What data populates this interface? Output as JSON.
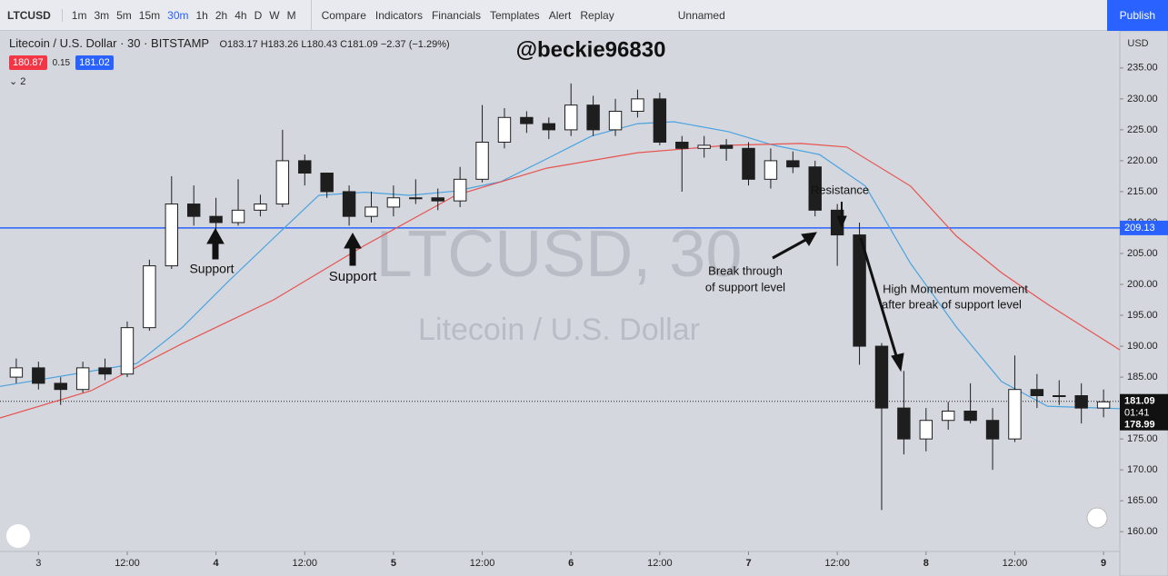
{
  "toolbar": {
    "symbol": "LTCUSD",
    "intervals": [
      "1m",
      "3m",
      "5m",
      "15m",
      "30m",
      "1h",
      "2h",
      "4h",
      "D",
      "W",
      "M"
    ],
    "buttons": [
      "Compare",
      "Indicators",
      "Financials",
      "Templates",
      "Alert",
      "Replay"
    ],
    "layout": "Unnamed",
    "publish": "Publish"
  },
  "legend": {
    "title": "Litecoin / U.S. Dollar · 30 · BITSTAMP",
    "ohlc": "O183.17 H183.26 L180.43 C181.09 −2.37 (−1.29%)",
    "bid": "180.87",
    "spread": "0.15",
    "ask": "181.02",
    "indicators": "2",
    "currency": "USD"
  },
  "chart_data": {
    "type": "candlestick",
    "watermark": "LTCUSD, 30",
    "watermark_sub": "Litecoin / U.S. Dollar",
    "handle": "@beckie96830",
    "x": [
      -3,
      0,
      3,
      6,
      9,
      12,
      15,
      18,
      21,
      24,
      27,
      30,
      33,
      36,
      39,
      42,
      45,
      48,
      51,
      54,
      57,
      60,
      63,
      66,
      69,
      72,
      75,
      78,
      81,
      84,
      87,
      90,
      93,
      96,
      99,
      102,
      105,
      108,
      111,
      114,
      117,
      120,
      123,
      126,
      129,
      132,
      135,
      138,
      141,
      144
    ],
    "open": [
      185,
      186.5,
      184,
      183,
      186.5,
      185.5,
      193,
      203,
      213,
      211,
      210,
      212,
      213,
      220,
      218,
      215,
      211,
      212.5,
      214,
      214,
      213.5,
      217,
      223,
      227,
      226,
      225,
      229,
      225,
      228,
      230,
      223,
      222,
      222.5,
      222,
      217,
      220,
      219,
      212,
      208,
      190,
      180,
      175,
      178,
      179.5,
      178,
      175,
      183,
      182,
      182,
      180
    ],
    "high": [
      188,
      187.5,
      185,
      187.5,
      188,
      194,
      204,
      217.5,
      216,
      214,
      217,
      214.5,
      225,
      221,
      218,
      216,
      215,
      216,
      217,
      215.5,
      219,
      229,
      228.5,
      228,
      227,
      232.5,
      230.5,
      230,
      231.5,
      231,
      224,
      224,
      223.5,
      223,
      222,
      221.5,
      220,
      213,
      210,
      190.5,
      186,
      180,
      181,
      184,
      180,
      188.5,
      185.5,
      184.5,
      184,
      183
    ],
    "low": [
      184,
      183,
      180.5,
      182.5,
      184.5,
      185,
      192.5,
      202.5,
      209.5,
      208.5,
      209.5,
      211,
      212.5,
      216,
      214,
      209.5,
      210,
      211,
      213,
      212,
      212.5,
      216.5,
      222,
      224.5,
      223.5,
      224,
      224,
      224,
      227,
      222.5,
      215,
      220.5,
      220,
      216,
      215.5,
      218,
      211,
      203,
      187,
      163.5,
      172.5,
      173,
      176.5,
      177.5,
      170,
      174.5,
      180,
      180.5,
      177.5,
      178.5
    ],
    "close": [
      186.5,
      184,
      183,
      186.5,
      185.5,
      193,
      203,
      213,
      211,
      210,
      212,
      213,
      220,
      218,
      215,
      211,
      212.5,
      214,
      214,
      213.5,
      217,
      223,
      227,
      226,
      225,
      229,
      225,
      228,
      230,
      223,
      222,
      222.5,
      222,
      217,
      220,
      219,
      212,
      208,
      190,
      180,
      175,
      178,
      179.5,
      178,
      175,
      183,
      182,
      182,
      180,
      181
    ],
    "up_color": "#ffffff",
    "down_color": "#1e1e1e",
    "lines": [
      {
        "color": "#4aa3e0",
        "x": [
          -5.2,
          13.3,
          19.4,
          25.6,
          31.8,
          37.9,
          44.1,
          50.2,
          56.4,
          62.5,
          68.7,
          74.8,
          81,
          85.9,
          93.3,
          99.4,
          105.6,
          111.8,
          117.9,
          124.1,
          130.2,
          136.4,
          146.2
        ],
        "values": [
          183.5,
          187.2,
          193,
          200.4,
          207.5,
          214.4,
          214.9,
          214.4,
          215.1,
          216.6,
          220.3,
          224,
          226,
          226.3,
          224.7,
          222.5,
          221,
          215.9,
          203.4,
          193.1,
          184.3,
          180.3,
          179.9
        ]
      },
      {
        "color": "#e8534f",
        "x": [
          -5.2,
          7.1,
          19.4,
          31.8,
          44.1,
          56.4,
          68.7,
          81,
          93.3,
          103.1,
          109.3,
          117.9,
          124.1,
          130.2,
          136.4,
          146.2
        ],
        "values": [
          178.4,
          182.8,
          190.4,
          197.5,
          206.3,
          214.4,
          218.8,
          221.3,
          222.5,
          222.8,
          222.2,
          215.9,
          207.8,
          201.9,
          196.8,
          189.4
        ]
      }
    ],
    "level": 209.13,
    "level_color": "#2962ff",
    "last_price": 181.09,
    "countdown": "01:41",
    "prev_close": 178.99,
    "xlim": [
      -5.2,
      146.2
    ],
    "ylim": [
      156.8,
      241.0
    ],
    "xticks": [
      {
        "value": 0,
        "label": "3"
      },
      {
        "value": 12,
        "label": "12:00"
      },
      {
        "value": 24,
        "label": "4"
      },
      {
        "value": 36,
        "label": "12:00"
      },
      {
        "value": 48,
        "label": "5"
      },
      {
        "value": 60,
        "label": "12:00"
      },
      {
        "value": 72,
        "label": "6"
      },
      {
        "value": 84,
        "label": "12:00"
      },
      {
        "value": 96,
        "label": "7"
      },
      {
        "value": 108,
        "label": "12:00"
      },
      {
        "value": 120,
        "label": "8"
      },
      {
        "value": 132,
        "label": "12:00"
      },
      {
        "value": 144,
        "label": "9"
      }
    ],
    "yticks": [
      {
        "value": 160,
        "label": "160.00"
      },
      {
        "value": 165,
        "label": "165.00"
      },
      {
        "value": 170,
        "label": "170.00"
      },
      {
        "value": 175,
        "label": "175.00"
      },
      {
        "value": 180,
        "label": "180.00"
      },
      {
        "value": 185,
        "label": "185.00"
      },
      {
        "value": 190,
        "label": "190.00"
      },
      {
        "value": 195,
        "label": "195.00"
      },
      {
        "value": 200,
        "label": "200.00"
      },
      {
        "value": 205,
        "label": "205.00"
      },
      {
        "value": 210,
        "label": "210.00"
      },
      {
        "value": 215,
        "label": "215.00"
      },
      {
        "value": 220,
        "label": "220.00"
      },
      {
        "value": 225,
        "label": "225.00"
      },
      {
        "value": 230,
        "label": "230.00"
      },
      {
        "value": 235,
        "label": "235.00"
      }
    ],
    "annotations": [
      "Support",
      "Support",
      "Break through",
      "of support level",
      "Resistance",
      "High Momentum movement",
      "after break of support level"
    ]
  }
}
